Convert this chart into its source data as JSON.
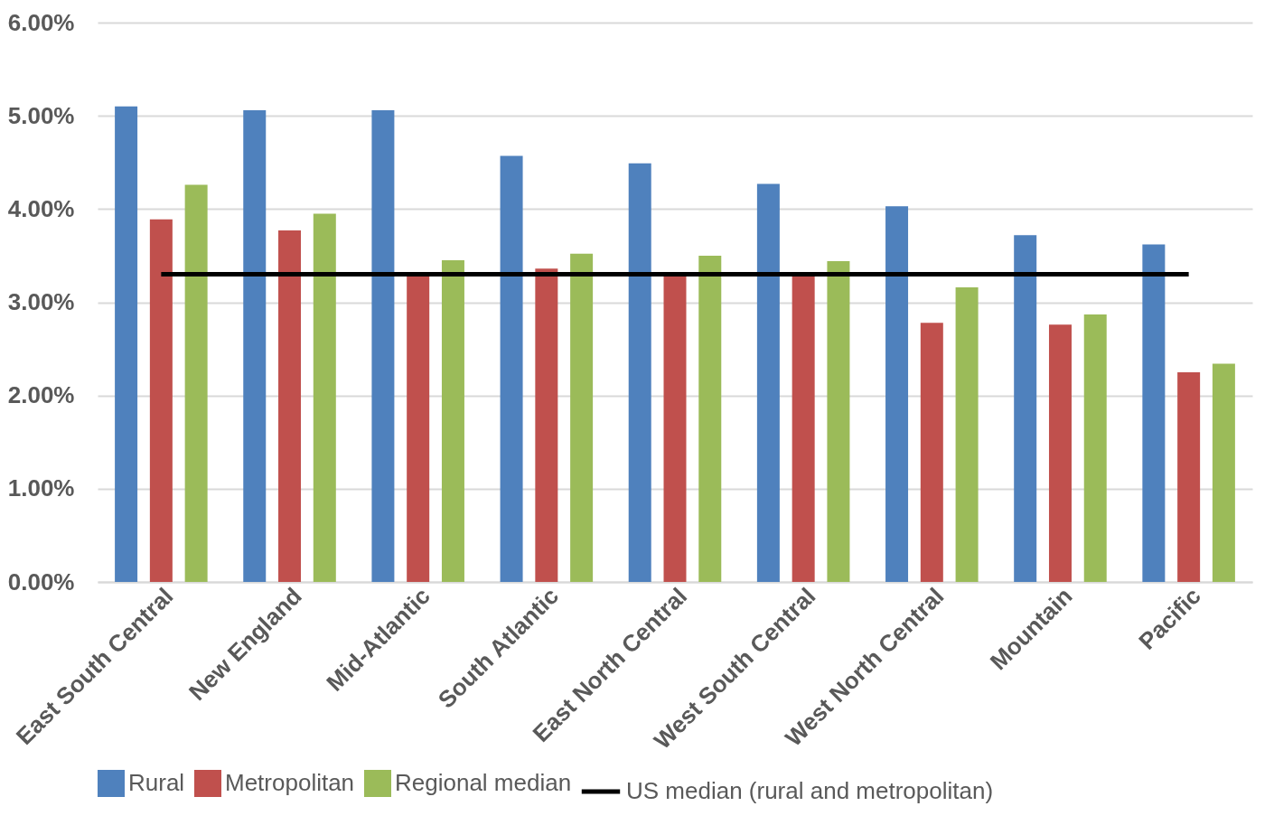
{
  "chart_data": {
    "type": "bar",
    "categories": [
      "East South Central",
      "New England",
      "Mid-Atlantic",
      "South Atlantic",
      "East North Central",
      "West South Central",
      "West North Central",
      "Mountain",
      "Pacific"
    ],
    "series": [
      {
        "name": "Rural",
        "color": "#4f81bd",
        "values": [
          5.1,
          5.06,
          5.06,
          4.57,
          4.49,
          4.27,
          4.03,
          3.72,
          3.62
        ]
      },
      {
        "name": "Metropolitan",
        "color": "#c0504d",
        "values": [
          3.89,
          3.77,
          3.3,
          3.36,
          3.3,
          3.3,
          2.78,
          2.76,
          2.25
        ]
      },
      {
        "name": "Regional median",
        "color": "#9bbb59",
        "values": [
          4.26,
          3.95,
          3.45,
          3.52,
          3.5,
          3.44,
          3.16,
          2.87,
          2.34
        ]
      },
      {
        "name": "US median (rural and metropolitan)",
        "type": "line",
        "color": "#000000",
        "values": [
          3.3,
          3.3,
          3.3,
          3.3,
          3.3,
          3.3,
          3.3,
          3.3,
          3.3
        ]
      }
    ],
    "ylim": [
      0,
      6
    ],
    "yticks": [
      {
        "value": 0,
        "label": "0.00%"
      },
      {
        "value": 1,
        "label": "1.00%"
      },
      {
        "value": 2,
        "label": "2.00%"
      },
      {
        "value": 3,
        "label": "3.00%"
      },
      {
        "value": 4,
        "label": "4.00%"
      },
      {
        "value": 5,
        "label": "5.00%"
      },
      {
        "value": 6,
        "label": "6.00%"
      }
    ],
    "grid": "y",
    "legend": "bottom"
  }
}
